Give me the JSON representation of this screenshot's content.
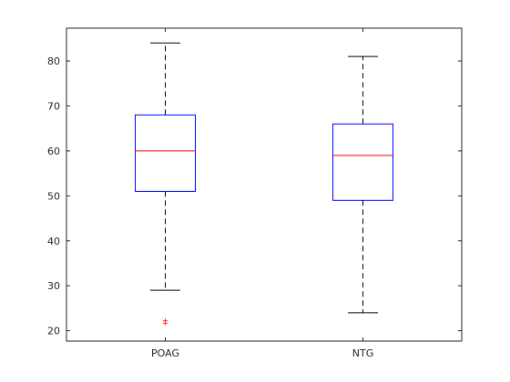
{
  "chart_data": {
    "type": "boxplot",
    "categories": [
      "POAG",
      "NTG"
    ],
    "boxes": [
      {
        "category": "POAG",
        "whisker_low": 29,
        "q1": 51,
        "median": 60,
        "q3": 68,
        "whisker_high": 84,
        "outliers": [
          21.5,
          22
        ]
      },
      {
        "category": "NTG",
        "whisker_low": 24,
        "q1": 49,
        "median": 59,
        "q3": 66,
        "whisker_high": 81,
        "outliers": []
      }
    ],
    "yticks": [
      20,
      30,
      40,
      50,
      60,
      70,
      80
    ],
    "ylim": [
      17.7,
      87.3
    ],
    "grid": false,
    "colors": {
      "box": "#0000ff",
      "median": "#ff0000",
      "whisker": "#000000",
      "outlier": "#ff0000",
      "axis": "#262626"
    },
    "outlier_marker": "+"
  }
}
